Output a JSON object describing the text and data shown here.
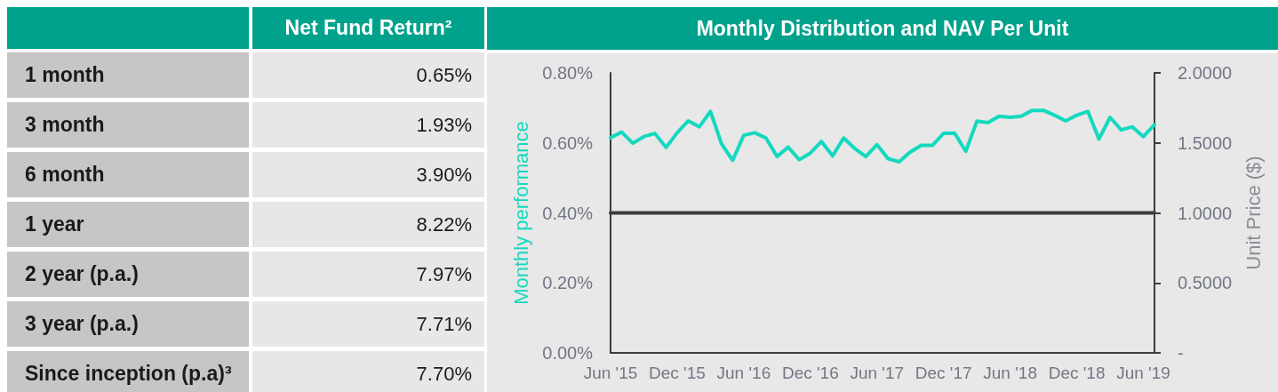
{
  "chart_data": [
    {
      "type": "other",
      "title": "Net Fund Return²",
      "categories": [
        "1 month",
        "3 month",
        "6 month",
        "1 year",
        "2 year (p.a.)",
        "3 year (p.a.)",
        "Since inception (p.a)³"
      ],
      "values": [
        0.65,
        1.93,
        3.9,
        8.22,
        7.97,
        7.71,
        7.7
      ],
      "value_labels": [
        "0.65%",
        "1.93%",
        "3.90%",
        "8.22%",
        "7.97%",
        "7.71%",
        "7.70%"
      ]
    },
    {
      "type": "line",
      "title": "Monthly Distribution and NAV Per Unit",
      "ylabel": "Monthly performance",
      "y2label": "Unit Price ($)",
      "categories": [
        "Jun '15",
        null,
        null,
        null,
        null,
        null,
        "Dec '15",
        null,
        null,
        null,
        null,
        null,
        "Jun '16",
        null,
        null,
        null,
        null,
        null,
        "Dec '16",
        null,
        null,
        null,
        null,
        null,
        "Jun '17",
        null,
        null,
        null,
        null,
        null,
        "Dec '17",
        null,
        null,
        null,
        null,
        null,
        "Jun '18",
        null,
        null,
        null,
        null,
        null,
        "Dec '18",
        null,
        null,
        null,
        null,
        null,
        "Jun '19",
        null
      ],
      "series": [
        {
          "color": "#14d9be",
          "values": [
            0.615,
            0.631,
            0.599,
            0.618,
            0.627,
            0.587,
            0.629,
            0.663,
            0.646,
            0.69,
            0.597,
            0.55,
            0.622,
            0.629,
            0.614,
            0.561,
            0.588,
            0.552,
            0.571,
            0.604,
            0.563,
            0.614,
            0.584,
            0.561,
            0.595,
            0.555,
            0.546,
            0.574,
            0.593,
            0.593,
            0.627,
            0.628,
            0.576,
            0.662,
            0.658,
            0.676,
            0.673,
            0.676,
            0.693,
            0.693,
            0.679,
            0.663,
            0.679,
            0.69,
            0.611,
            0.673,
            0.637,
            0.646,
            0.618,
            0.652
          ]
        },
        {
          "axis": "y2",
          "color": "#3b3c40",
          "values": [
            1,
            1,
            1,
            1,
            1,
            1,
            1,
            1,
            1,
            1,
            1,
            1,
            1,
            1,
            1,
            1,
            1,
            1,
            1,
            1,
            1,
            1,
            1,
            1,
            1,
            1,
            1,
            1,
            1,
            1,
            1,
            1,
            1,
            1,
            1,
            1,
            1,
            1,
            1,
            1,
            1,
            1,
            1,
            1,
            1,
            1,
            1,
            1,
            1,
            1
          ]
        }
      ],
      "ylim": [
        0,
        0.8
      ],
      "yticks": [
        {
          "value": 0,
          "label": "0.00%"
        },
        {
          "value": 0.2,
          "label": "0.20%"
        },
        {
          "value": 0.4,
          "label": "0.40%"
        },
        {
          "value": 0.6,
          "label": "0.60%"
        },
        {
          "value": 0.8,
          "label": "0.80%"
        }
      ],
      "y2lim": [
        0,
        2
      ],
      "y2ticks": [
        {
          "value": 0,
          "label": "-"
        },
        {
          "value": 0.5,
          "label": "0.5000"
        },
        {
          "value": 1,
          "label": "1.0000"
        },
        {
          "value": 1.5,
          "label": "1.5000"
        },
        {
          "value": 2,
          "label": "2.0000"
        }
      ],
      "grid": false,
      "marker": "none",
      "line_style": "solid"
    }
  ]
}
